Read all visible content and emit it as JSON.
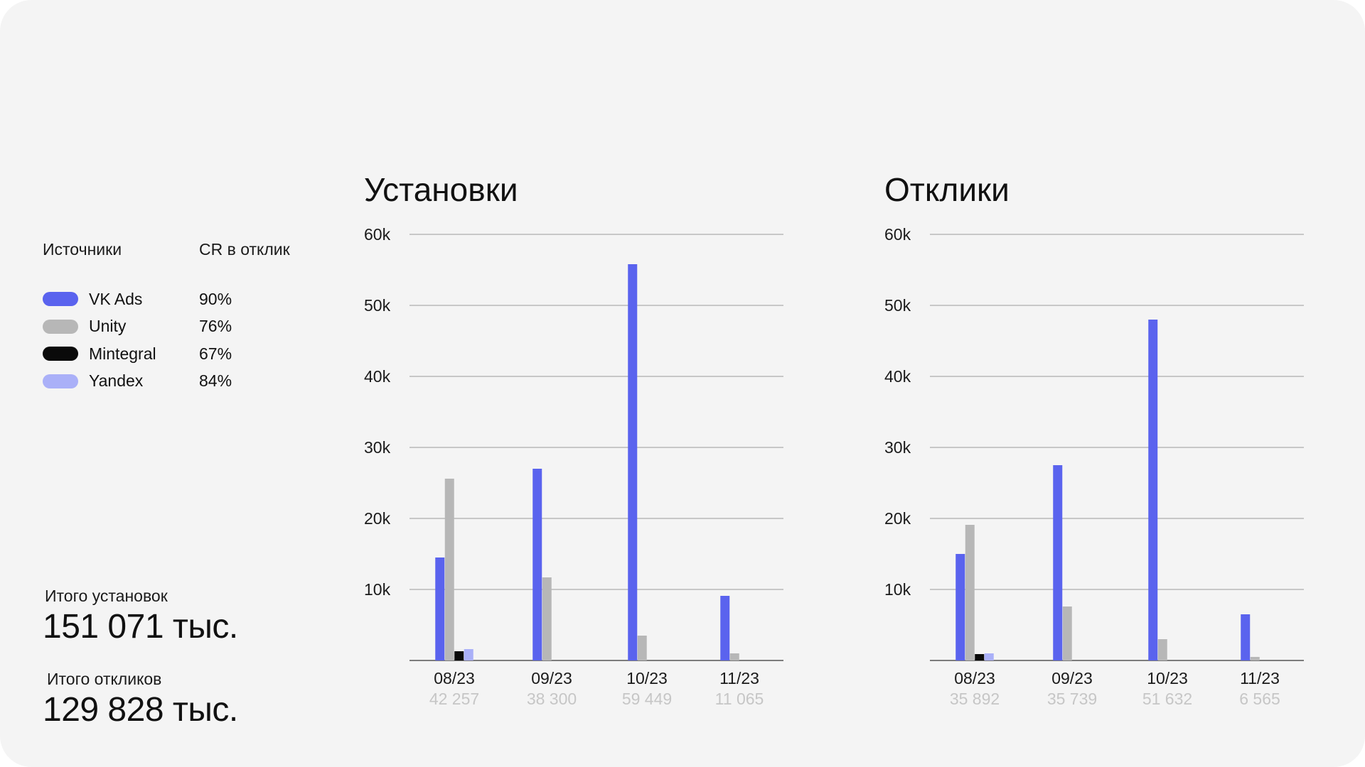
{
  "legend": {
    "header_source": "Источники",
    "header_cr": "CR в отклик",
    "items": [
      {
        "name": "VK Ads",
        "cr": "90%",
        "color": "#5a63ee"
      },
      {
        "name": "Unity",
        "cr": "76%",
        "color": "#b7b7b7"
      },
      {
        "name": "Mintegral",
        "cr": "67%",
        "color": "#0a0a0a"
      },
      {
        "name": "Yandex",
        "cr": "84%",
        "color": "#aab0f8"
      }
    ]
  },
  "totals": {
    "installs_label": "Итого установок",
    "installs_value": "151 071 тыс.",
    "responses_label": "Итого откликов",
    "responses_value": "129 828 тыс."
  },
  "chart_data": [
    {
      "type": "bar",
      "title": "Установки",
      "categories": [
        "08/23",
        "09/23",
        "10/23",
        "11/23"
      ],
      "category_totals": [
        "42 257",
        "38 300",
        "59 449",
        "11 065"
      ],
      "yticks": [
        "10k",
        "20k",
        "30k",
        "40k",
        "50k",
        "60k"
      ],
      "ylim": [
        0,
        60000
      ],
      "series": [
        {
          "name": "VK Ads",
          "color": "#5a63ee",
          "values": [
            14500,
            27000,
            55800,
            9100
          ]
        },
        {
          "name": "Unity",
          "color": "#b7b7b7",
          "values": [
            25600,
            11700,
            3500,
            1000
          ]
        },
        {
          "name": "Mintegral",
          "color": "#0a0a0a",
          "values": [
            1300,
            0,
            0,
            0
          ]
        },
        {
          "name": "Yandex",
          "color": "#aab0f8",
          "values": [
            1600,
            0,
            0,
            0
          ]
        }
      ]
    },
    {
      "type": "bar",
      "title": "Отклики",
      "categories": [
        "08/23",
        "09/23",
        "10/23",
        "11/23"
      ],
      "category_totals": [
        "35 892",
        "35 739",
        "51 632",
        "6 565"
      ],
      "yticks": [
        "10k",
        "20k",
        "30k",
        "40k",
        "50k",
        "60k"
      ],
      "ylim": [
        0,
        60000
      ],
      "series": [
        {
          "name": "VK Ads",
          "color": "#5a63ee",
          "values": [
            15000,
            27500,
            48000,
            6500
          ]
        },
        {
          "name": "Unity",
          "color": "#b7b7b7",
          "values": [
            19100,
            7600,
            3000,
            500
          ]
        },
        {
          "name": "Mintegral",
          "color": "#0a0a0a",
          "values": [
            900,
            0,
            0,
            0
          ]
        },
        {
          "name": "Yandex",
          "color": "#aab0f8",
          "values": [
            1000,
            0,
            0,
            0
          ]
        }
      ]
    }
  ]
}
